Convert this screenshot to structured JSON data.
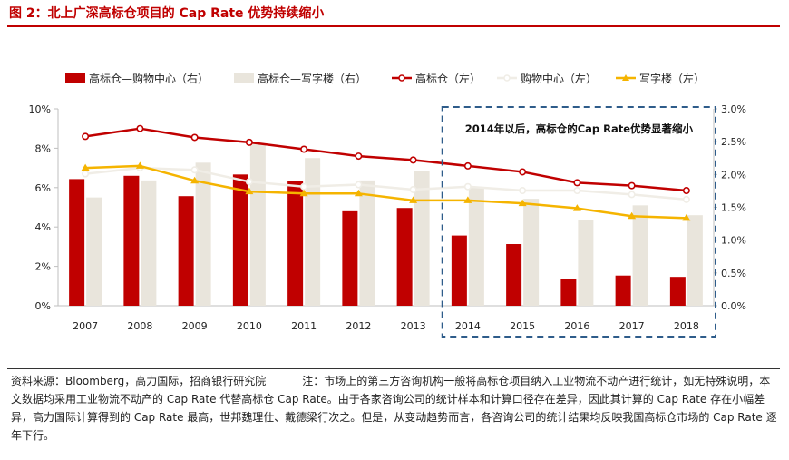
{
  "figure": {
    "title": "图 2：北上广深高标仓项目的 Cap Rate 优势持续缩小"
  },
  "source": {
    "label": "资料来源：Bloomberg，高力国际，招商银行研究院",
    "note": "注：市场上的第三方咨询机构一般将高标仓项目纳入工业物流不动产进行统计，如无特殊说明，本文数据均采用工业物流不动产的 Cap Rate 代替高标仓 Cap Rate。由于各家咨询公司的统计样本和计算口径存在差异，因此其计算的 Cap Rate 存在小幅差异，高力国际计算得到的 Cap Rate 最高，世邦魏理仕、戴德梁行次之。但是，从变动趋势而言，各咨询公司的统计结果均反映我国高标仓市场的 Cap Rate 逐年下行。"
  },
  "chart_data": {
    "type": "bar+line",
    "categories": [
      "2007",
      "2008",
      "2009",
      "2010",
      "2011",
      "2012",
      "2013",
      "2014",
      "2015",
      "2016",
      "2017",
      "2018"
    ],
    "left_axis": {
      "ylim": [
        0,
        10
      ],
      "ticks": [
        "0%",
        "2%",
        "4%",
        "6%",
        "8%",
        "10%"
      ]
    },
    "right_axis": {
      "ylim": [
        0,
        3.0
      ],
      "ticks": [
        "0.0%",
        "0.5%",
        "1.0%",
        "1.5%",
        "2.0%",
        "2.5%",
        "3.0%"
      ]
    },
    "bar_series": [
      {
        "name": "高标仓—购物中心（右）",
        "axis": "right",
        "color": "#C00000",
        "values": [
          1.93,
          1.98,
          1.67,
          2.0,
          1.9,
          1.44,
          1.49,
          1.07,
          0.94,
          0.41,
          0.46,
          0.44
        ]
      },
      {
        "name": "高标仓—写字楼（右）",
        "axis": "right",
        "color": "#E9E5DC",
        "values": [
          1.65,
          1.91,
          2.18,
          2.47,
          2.25,
          1.91,
          2.05,
          1.81,
          1.63,
          1.3,
          1.53,
          1.38
        ]
      }
    ],
    "line_series": [
      {
        "name": "高标仓（左）",
        "axis": "left",
        "color": "#C00000",
        "marker": "circle-hollow",
        "values": [
          8.6,
          9.0,
          8.55,
          8.3,
          7.95,
          7.6,
          7.4,
          7.1,
          6.8,
          6.25,
          6.1,
          5.85
        ]
      },
      {
        "name": "购物中心（左）",
        "axis": "left",
        "color": "#F0EDE6",
        "marker": "circle-hollow",
        "values": [
          6.7,
          7.0,
          6.9,
          6.3,
          6.05,
          6.15,
          5.9,
          6.05,
          5.85,
          5.85,
          5.65,
          5.4
        ]
      },
      {
        "name": "写字楼（左）",
        "axis": "left",
        "color": "#F5B400",
        "marker": "triangle",
        "values": [
          7.0,
          7.1,
          6.35,
          5.8,
          5.7,
          5.7,
          5.35,
          5.35,
          5.2,
          4.95,
          4.55,
          4.45
        ]
      }
    ],
    "annotation": {
      "text": "2014年以后，高标仓的Cap Rate优势显著缩小",
      "box_style": "dashed",
      "box_color": "#2E5C8A"
    },
    "grid": false,
    "legend_position": "top"
  }
}
